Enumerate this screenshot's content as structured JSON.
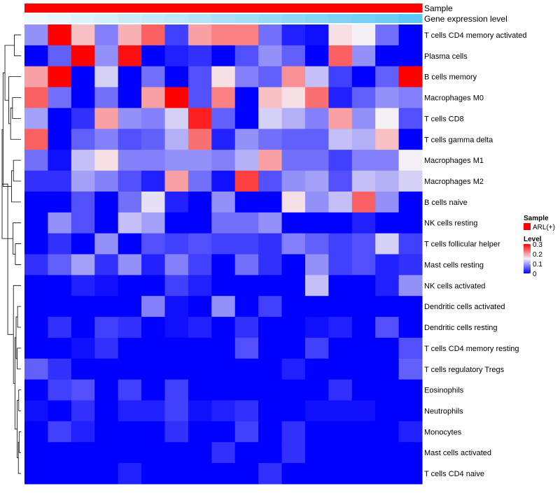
{
  "chart_data": {
    "type": "heatmap",
    "title": "",
    "annotations": [
      {
        "name": "Sample",
        "label": "Sample"
      },
      {
        "name": "Gene expression level",
        "label": "Gene expression level"
      }
    ],
    "rows": [
      "T cells CD4 memory activated",
      "Plasma cells",
      "B cells memory",
      "Macrophages M0",
      "T cells CD8",
      "T cells gamma delta",
      "Macrophages M1",
      "Macrophages M2",
      "B cells naive",
      "NK cells resting",
      "T cells follicular helper",
      "Mast cells resting",
      "NK cells activated",
      "Dendritic cells activated",
      "Dendritic cells resting",
      "T cells CD4 memory resting",
      "T cells regulatory  Tregs",
      "Eosinophils",
      "Neutrophils",
      "Monocytes",
      "Mast cells activated",
      "T cells CD4 naive"
    ],
    "n_columns": 17,
    "values": [
      [
        0.09,
        0.3,
        0.18,
        0.08,
        0.19,
        0.24,
        0.04,
        0.2,
        0.22,
        0.22,
        0.07,
        0.02,
        0.01,
        0.16,
        0.15,
        0.07,
        0.0
      ],
      [
        0.0,
        0.06,
        0.3,
        0.09,
        0.29,
        0.0,
        0.02,
        0.03,
        0.0,
        0.05,
        0.09,
        0.06,
        0.0,
        0.24,
        0.09,
        0.0,
        0.0
      ],
      [
        0.2,
        0.3,
        0.0,
        0.13,
        0.0,
        0.07,
        0.0,
        0.05,
        0.16,
        0.08,
        0.06,
        0.21,
        0.12,
        0.04,
        0.0,
        0.06,
        0.3
      ],
      [
        0.24,
        0.07,
        0.0,
        0.07,
        0.0,
        0.2,
        0.3,
        0.05,
        0.22,
        0.0,
        0.18,
        0.16,
        0.23,
        0.02,
        0.06,
        0.09,
        0.08
      ],
      [
        0.1,
        0.0,
        0.03,
        0.2,
        0.09,
        0.08,
        0.13,
        0.28,
        0.06,
        0.0,
        0.13,
        0.11,
        0.08,
        0.2,
        0.09,
        0.15,
        0.05
      ],
      [
        0.24,
        0.0,
        0.06,
        0.08,
        0.05,
        0.06,
        0.11,
        0.23,
        0.02,
        0.09,
        0.07,
        0.06,
        0.06,
        0.12,
        0.11,
        0.18,
        0.0
      ],
      [
        0.07,
        0.01,
        0.12,
        0.16,
        0.08,
        0.08,
        0.09,
        0.09,
        0.08,
        0.11,
        0.2,
        0.07,
        0.07,
        0.04,
        0.08,
        0.08,
        0.15
      ],
      [
        0.03,
        0.03,
        0.1,
        0.08,
        0.05,
        0.02,
        0.2,
        0.07,
        0.01,
        0.26,
        0.05,
        0.09,
        0.1,
        0.05,
        0.12,
        0.11,
        0.13
      ],
      [
        0.0,
        0.0,
        0.05,
        0.0,
        0.07,
        0.14,
        0.02,
        0.0,
        0.09,
        0.0,
        0.0,
        0.16,
        0.09,
        0.12,
        0.24,
        0.09,
        0.0
      ],
      [
        0.0,
        0.09,
        0.05,
        0.0,
        0.12,
        0.1,
        0.0,
        0.0,
        0.07,
        0.07,
        0.09,
        0.0,
        0.0,
        0.0,
        0.02,
        0.0,
        0.0
      ],
      [
        0.0,
        0.03,
        0.0,
        0.09,
        0.0,
        0.05,
        0.04,
        0.05,
        0.04,
        0.04,
        0.03,
        0.08,
        0.06,
        0.04,
        0.05,
        0.13,
        0.04
      ],
      [
        0.03,
        0.06,
        0.1,
        0.03,
        0.09,
        0.02,
        0.08,
        0.04,
        0.0,
        0.07,
        0.03,
        0.0,
        0.09,
        0.04,
        0.05,
        0.02,
        0.03
      ],
      [
        0.0,
        0.0,
        0.02,
        0.01,
        0.0,
        0.0,
        0.04,
        0.02,
        0.0,
        0.0,
        0.0,
        0.0,
        0.12,
        0.0,
        0.0,
        0.02,
        0.09
      ],
      [
        0.0,
        0.0,
        0.0,
        0.0,
        0.0,
        0.08,
        0.01,
        0.0,
        0.09,
        0.0,
        0.04,
        0.0,
        0.0,
        0.0,
        0.0,
        0.0,
        0.0
      ],
      [
        0.0,
        0.03,
        0.0,
        0.04,
        0.03,
        0.0,
        0.01,
        0.02,
        0.0,
        0.03,
        0.0,
        0.0,
        0.01,
        0.02,
        0.0,
        0.05,
        0.0
      ],
      [
        0.0,
        0.0,
        0.01,
        0.03,
        0.0,
        0.0,
        0.0,
        0.0,
        0.0,
        0.05,
        0.0,
        0.0,
        0.04,
        0.0,
        0.0,
        0.0,
        0.05
      ],
      [
        0.06,
        0.03,
        0.0,
        0.0,
        0.0,
        0.0,
        0.0,
        0.0,
        0.0,
        0.0,
        0.0,
        0.02,
        0.0,
        0.0,
        0.0,
        0.0,
        0.06
      ],
      [
        0.0,
        0.04,
        0.05,
        0.0,
        0.04,
        0.0,
        0.04,
        0.0,
        0.0,
        0.0,
        0.0,
        0.0,
        0.0,
        0.03,
        0.0,
        0.0,
        0.0
      ],
      [
        0.01,
        0.0,
        0.03,
        0.0,
        0.02,
        0.02,
        0.04,
        0.01,
        0.02,
        0.03,
        0.0,
        0.0,
        0.01,
        0.01,
        0.01,
        0.0,
        0.0
      ],
      [
        0.0,
        0.04,
        0.02,
        0.0,
        0.0,
        0.0,
        0.03,
        0.0,
        0.0,
        0.04,
        0.0,
        0.03,
        0.0,
        0.0,
        0.0,
        0.0,
        0.02
      ],
      [
        0.0,
        0.0,
        0.0,
        0.0,
        0.0,
        0.0,
        0.0,
        0.0,
        0.03,
        0.0,
        0.0,
        0.03,
        0.0,
        0.0,
        0.0,
        0.0,
        0.0
      ],
      [
        0.0,
        0.0,
        0.0,
        0.0,
        0.02,
        0.0,
        0.0,
        0.0,
        0.0,
        0.0,
        0.03,
        0.0,
        0.0,
        0.0,
        0.0,
        0.0,
        0.0
      ]
    ],
    "gene_expression_level": [
      0.0,
      0.06,
      0.12,
      0.18,
      0.24,
      0.3,
      0.36,
      0.42,
      0.48,
      0.54,
      0.6,
      0.66,
      0.72,
      0.78,
      0.84,
      0.9,
      1.0
    ],
    "value_range": [
      0,
      0.3
    ],
    "colors": {
      "low": "#0000FF",
      "mid": "#F5F0F5",
      "high": "#FF0000",
      "sample_bar": "#FF0000",
      "gene_low": "#EFF9FC",
      "gene_high": "#5BC8F5"
    },
    "legend": {
      "placement": "right",
      "sample_title": "Sample",
      "sample_items": [
        "ARL(+)"
      ],
      "level_title": "Level",
      "level_ticks": [
        "0.3",
        "0.2",
        "0.1",
        "0"
      ]
    }
  }
}
